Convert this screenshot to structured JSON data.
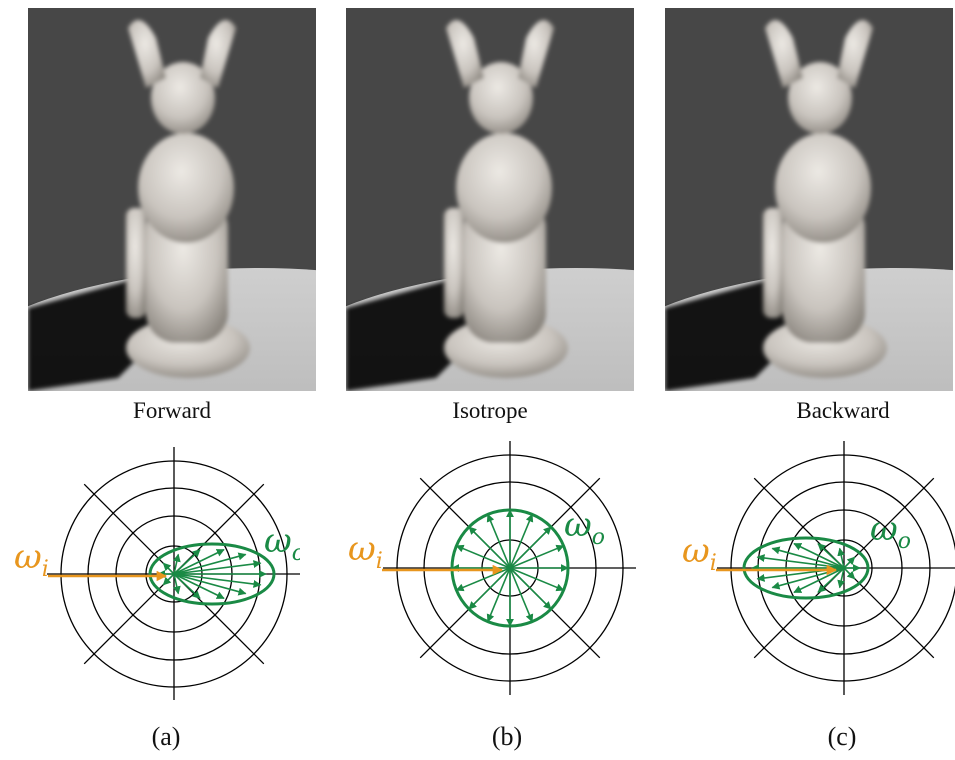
{
  "panels": [
    {
      "caption": "Forward",
      "label": "(a)",
      "scattering": "forward",
      "w_in": "ω",
      "w_in_sub": "i",
      "w_out": "ω",
      "w_out_sub": "o"
    },
    {
      "caption": "Isotrope",
      "label": "(b)",
      "scattering": "isotropic",
      "w_in": "ω",
      "w_in_sub": "i",
      "w_out": "ω",
      "w_out_sub": "o"
    },
    {
      "caption": "Backward",
      "label": "(c)",
      "scattering": "backward",
      "w_in": "ω",
      "w_in_sub": "i",
      "w_out": "ω",
      "w_out_sub": "o"
    }
  ],
  "colors": {
    "incident": "#e8961e",
    "scattered": "#1a8a45",
    "grid": "#000000",
    "background_wall": "#474747",
    "floor": "#b9b9b9",
    "statue": "#d9d5d0"
  }
}
